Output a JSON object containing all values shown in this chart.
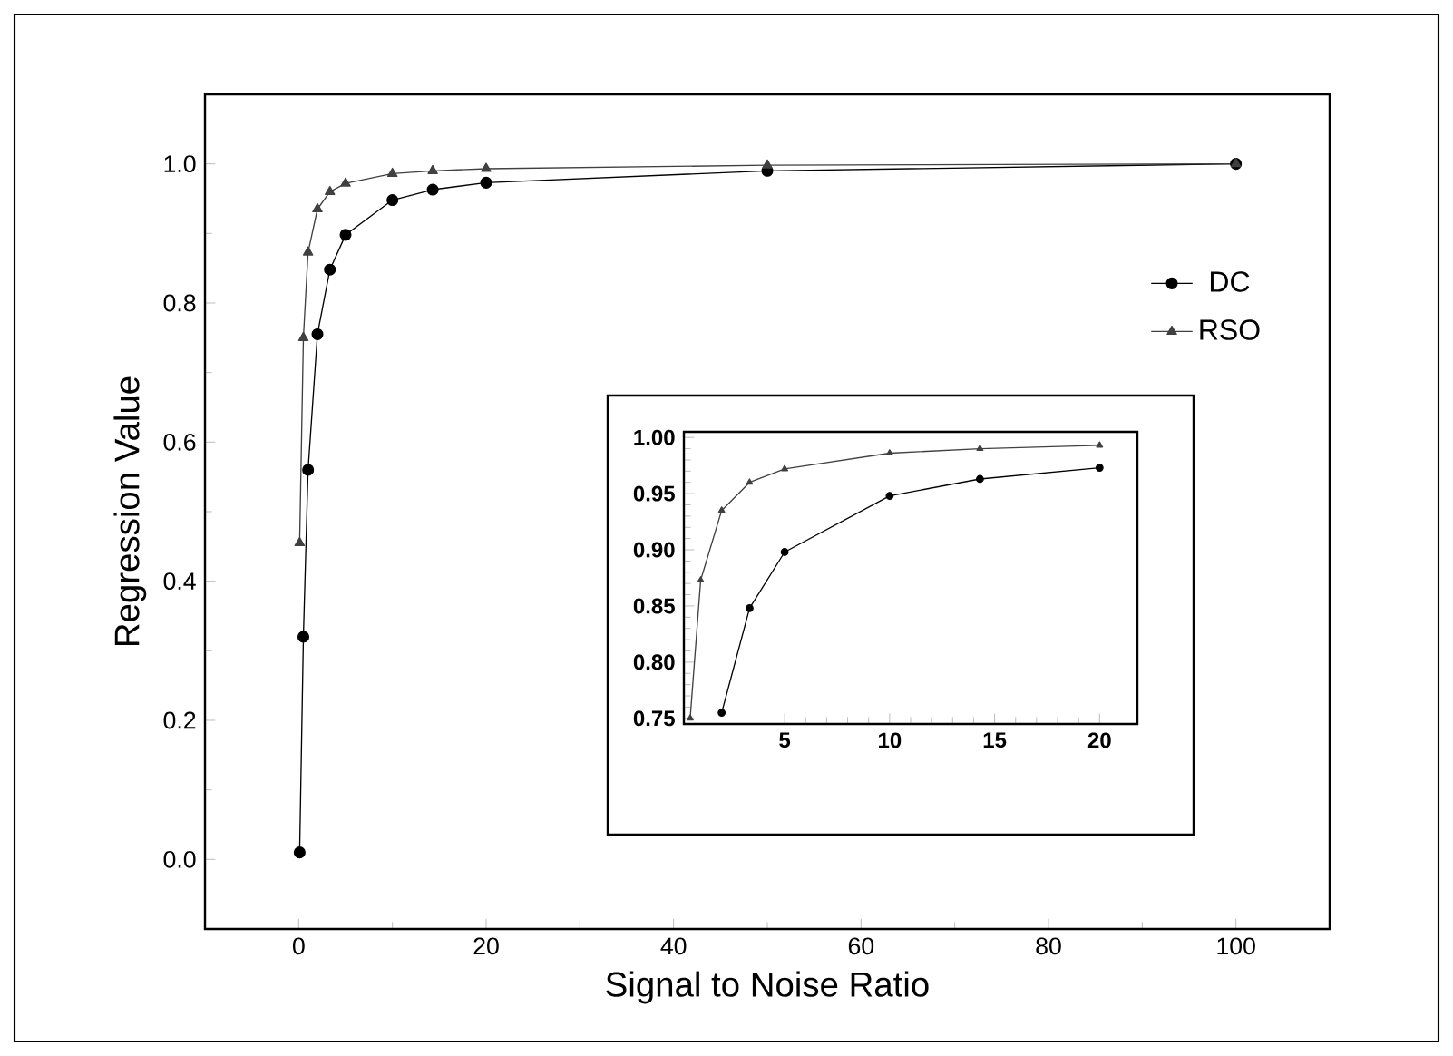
{
  "chart_data": [
    {
      "type": "line",
      "xlabel": "Signal to Noise Ratio",
      "ylabel": "Regression Value",
      "xlim": [
        -10,
        110
      ],
      "ylim": [
        -0.1,
        1.1
      ],
      "xticks": [
        0,
        20,
        40,
        60,
        80,
        100
      ],
      "yticks": [
        {
          "value": 0,
          "label": "0.0"
        },
        {
          "value": 0.2,
          "label": "0.2"
        },
        {
          "value": 0.4,
          "label": "0.4"
        },
        {
          "value": 0.6,
          "label": "0.6"
        },
        {
          "value": 0.8,
          "label": "0.8"
        },
        {
          "value": 1,
          "label": "1.0"
        }
      ],
      "legend": "right",
      "line_style": "solid",
      "series": [
        {
          "name": "DC",
          "color": "#000000",
          "marker": "circle",
          "x": [
            0.1,
            0.5,
            1,
            2,
            3.33,
            5,
            10,
            14.3,
            20,
            50,
            100
          ],
          "values": [
            0.01,
            0.32,
            0.56,
            0.755,
            0.848,
            0.898,
            0.948,
            0.963,
            0.973,
            0.99,
            1.0
          ]
        },
        {
          "name": "RSO",
          "color": "#404040",
          "marker": "triangle",
          "x": [
            0.1,
            0.5,
            1,
            2,
            3.33,
            5,
            10,
            14.3,
            20,
            50,
            100
          ],
          "values": [
            0.455,
            0.75,
            0.873,
            0.935,
            0.96,
            0.972,
            0.986,
            0.99,
            0.993,
            0.998,
            1.0
          ]
        }
      ]
    },
    {
      "type": "line",
      "xlim": [
        0.2,
        21.8
      ],
      "ylim": [
        0.745,
        1.005
      ],
      "xticks": [
        5,
        10,
        15,
        20
      ],
      "yticks": [
        0.75,
        {
          "value": 0.8,
          "label": "0.80"
        },
        0.85,
        {
          "value": 0.9,
          "label": "0.90"
        },
        0.95,
        {
          "value": 1,
          "label": "1.00"
        }
      ],
      "line_style": "solid",
      "series": [
        {
          "color": "#000000",
          "marker": "circle",
          "x": [
            2,
            3.33,
            5,
            10,
            14.3,
            20
          ],
          "values": [
            0.755,
            0.848,
            0.898,
            0.948,
            0.963,
            0.973
          ]
        },
        {
          "color": "#404040",
          "marker": "triangle",
          "x": [
            0.5,
            1,
            2,
            3.33,
            5,
            10,
            14.3,
            20
          ],
          "values": [
            0.75,
            0.873,
            0.935,
            0.96,
            0.972,
            0.986,
            0.99,
            0.993
          ]
        }
      ]
    }
  ]
}
